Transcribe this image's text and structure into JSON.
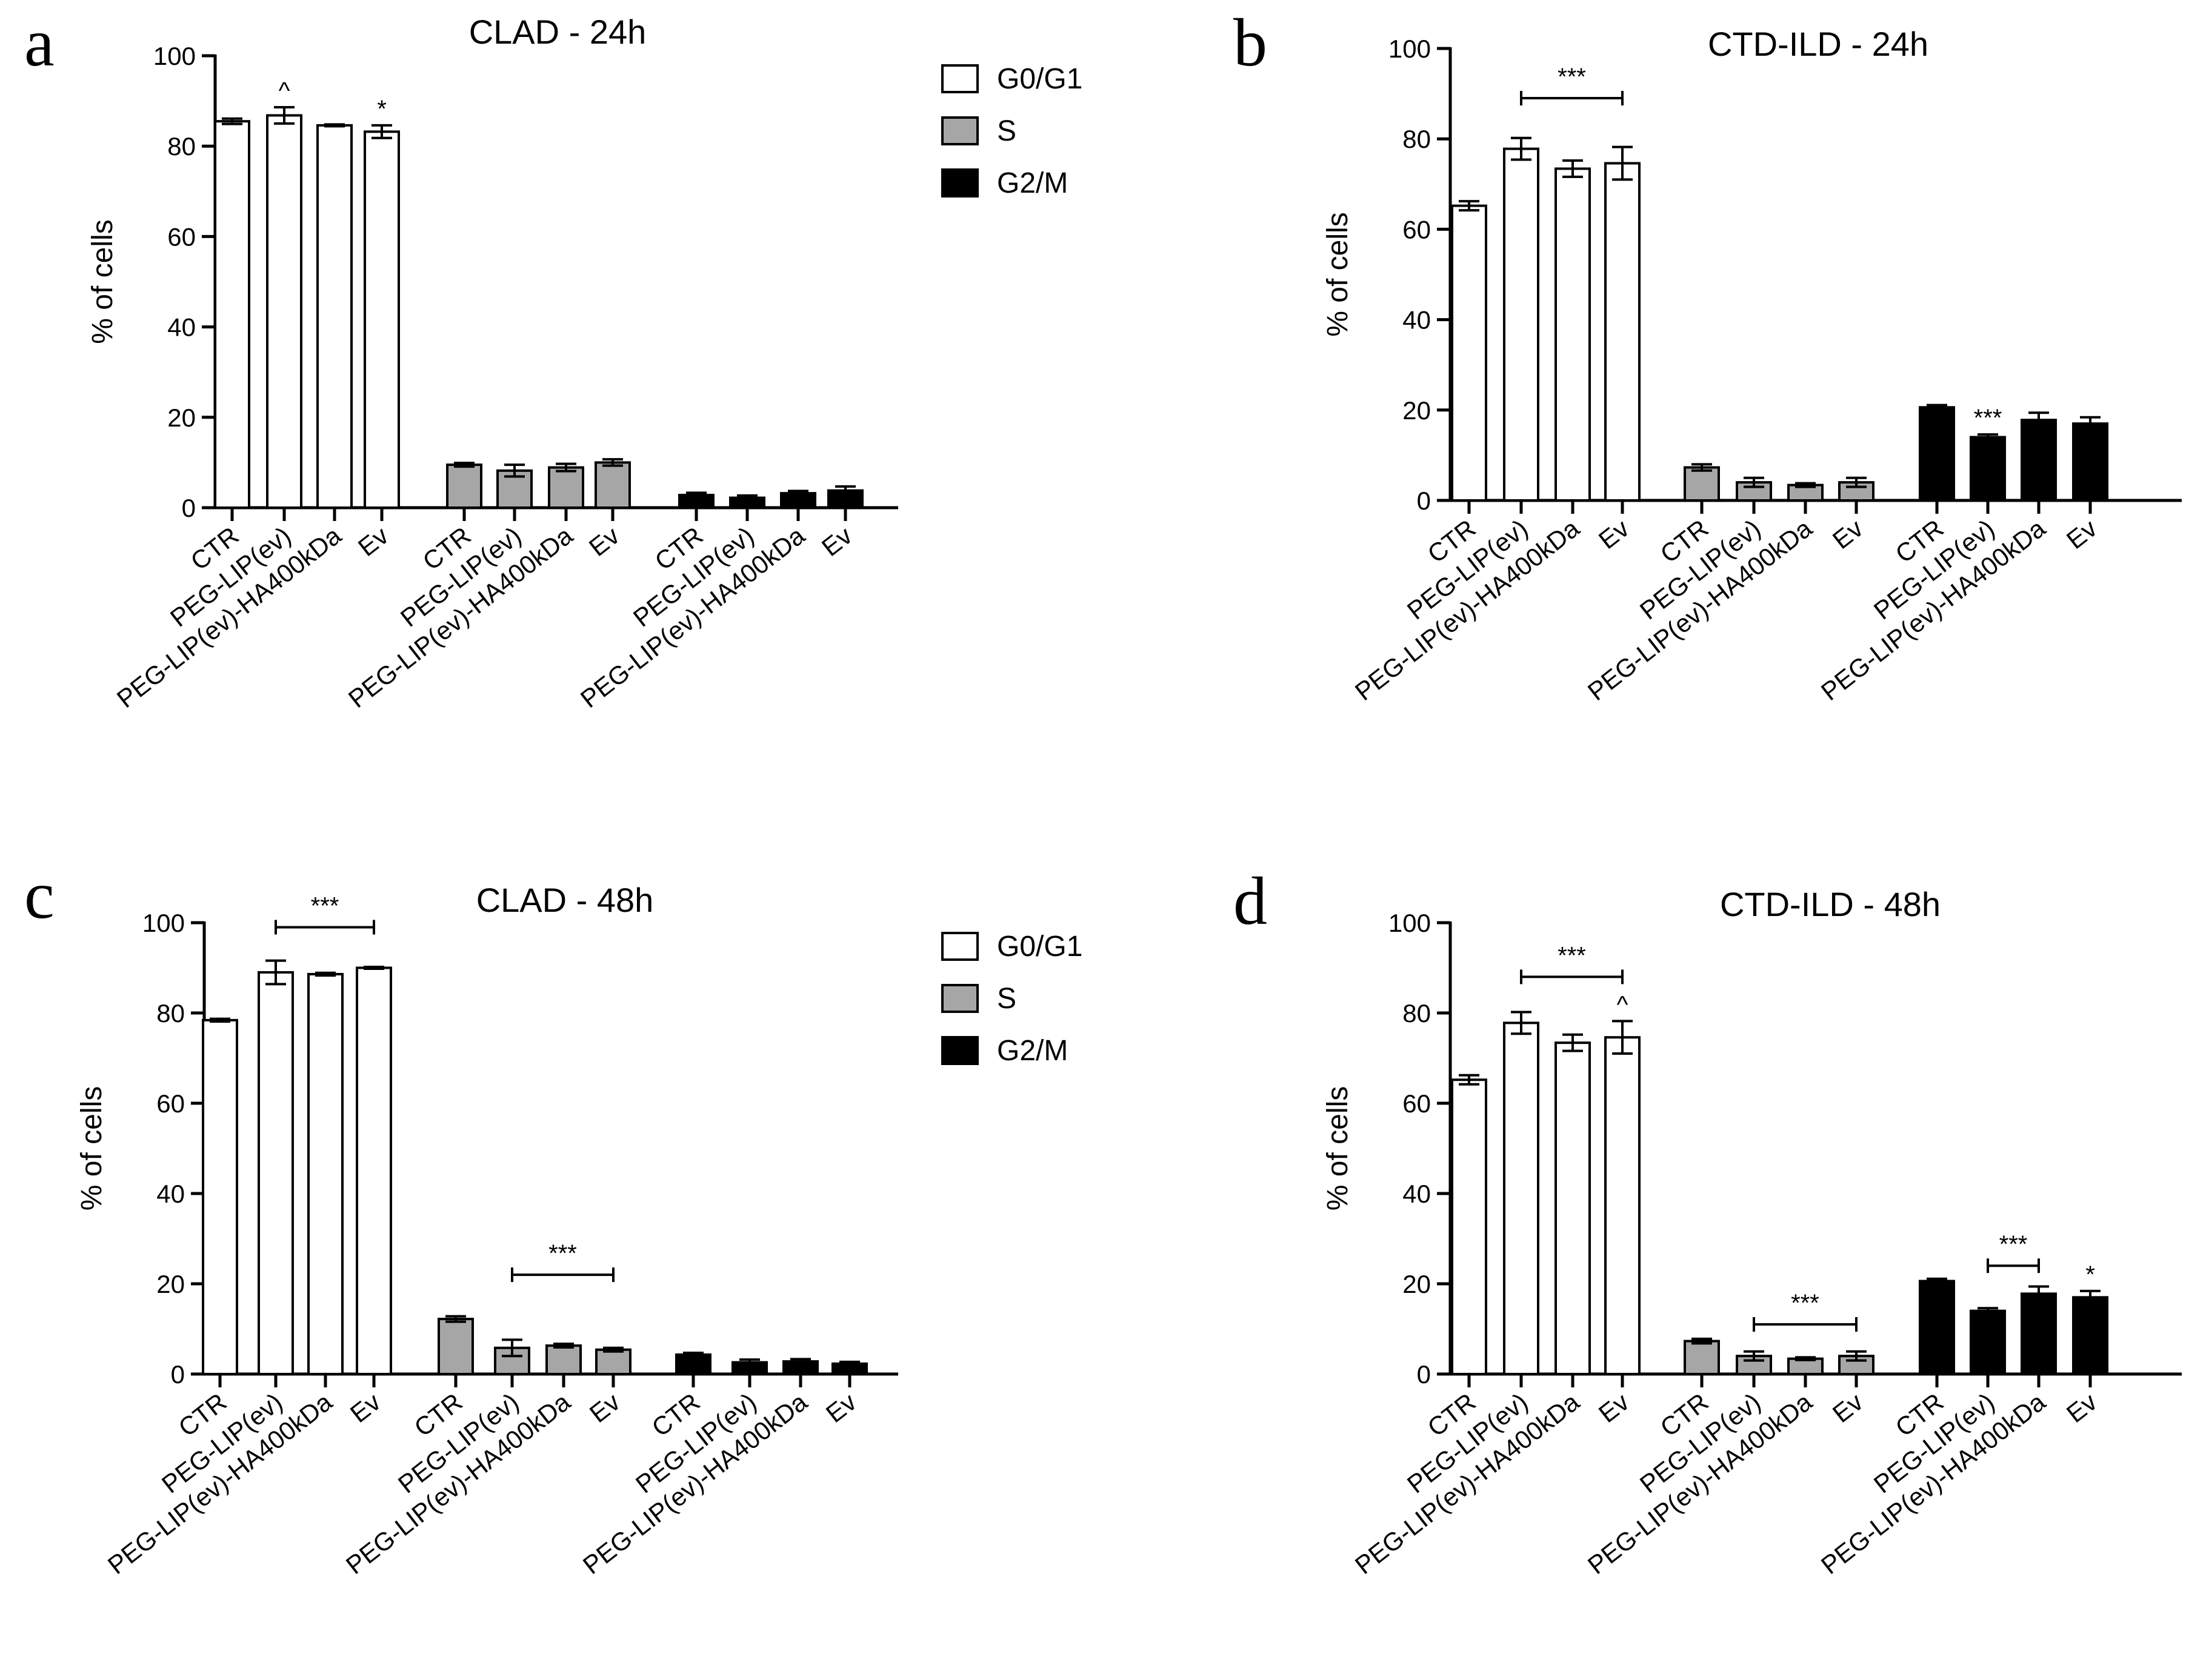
{
  "series_names": [
    "G0/G1",
    "S",
    "G2/M"
  ],
  "series_fills": [
    "#ffffff",
    "#a6a6a6",
    "#000000"
  ],
  "group_labels": [
    "CTR",
    "PEG-LIP(ev)",
    "PEG-LIP(ev)-HA400kDa",
    "Ev"
  ],
  "chart_data": [
    {
      "panel": "a",
      "type": "bar",
      "title": "CLAD - 24h",
      "ylabel": "% of cells",
      "ylim": [
        0,
        100
      ],
      "yticks": [
        0,
        20,
        40,
        60,
        80,
        100
      ],
      "categories": [
        "CTR",
        "PEG-LIP(ev)",
        "PEG-LIP(ev)-HA400kDa",
        "Ev"
      ],
      "legend": true,
      "series": [
        {
          "name": "G0/G1",
          "values": [
            85.5,
            86.8,
            84.6,
            83.2
          ],
          "errors": [
            0.6,
            1.8,
            0.2,
            1.4
          ]
        },
        {
          "name": "S",
          "values": [
            9.5,
            8.2,
            8.9,
            10.0
          ],
          "errors": [
            0.4,
            1.3,
            0.8,
            0.7
          ]
        },
        {
          "name": "G2/M",
          "values": [
            2.8,
            2.2,
            3.2,
            3.8
          ],
          "errors": [
            0.5,
            0.5,
            0.5,
            0.9
          ]
        }
      ],
      "annotations": [
        {
          "series": 0,
          "bar": 1,
          "text": "^"
        },
        {
          "series": 0,
          "bar": 3,
          "text": "*"
        }
      ],
      "brackets": []
    },
    {
      "panel": "b",
      "type": "bar",
      "title": "CTD-ILD - 24h",
      "ylabel": "% of cells",
      "ylim": [
        0,
        100
      ],
      "yticks": [
        0,
        20,
        40,
        60,
        80,
        100
      ],
      "categories": [
        "CTR",
        "PEG-LIP(ev)",
        "PEG-LIP(ev)-HA400kDa",
        "Ev"
      ],
      "legend": false,
      "series": [
        {
          "name": "G0/G1",
          "values": [
            65.2,
            77.8,
            73.4,
            74.6
          ],
          "errors": [
            1.0,
            2.4,
            1.8,
            3.6
          ]
        },
        {
          "name": "S",
          "values": [
            7.3,
            4.0,
            3.4,
            4.0
          ],
          "errors": [
            0.7,
            1.0,
            0.4,
            1.0
          ]
        },
        {
          "name": "G2/M",
          "values": [
            20.6,
            14.0,
            17.8,
            17.0
          ],
          "errors": [
            0.5,
            0.6,
            1.6,
            1.4
          ]
        }
      ],
      "annotations": [
        {
          "series": 2,
          "bar": 1,
          "text": "***"
        }
      ],
      "brackets": [
        {
          "series": 0,
          "from": 1,
          "to": 3,
          "value": 89,
          "text": "***"
        }
      ]
    },
    {
      "panel": "c",
      "type": "bar",
      "title": "CLAD - 48h",
      "ylabel": "% of cells",
      "ylim": [
        0,
        100
      ],
      "yticks": [
        0,
        20,
        40,
        60,
        80,
        100
      ],
      "categories": [
        "CTR",
        "PEG-LIP(ev)",
        "PEG-LIP(ev)-HA400kDa",
        "Ev"
      ],
      "legend": true,
      "series": [
        {
          "name": "G0/G1",
          "values": [
            78.4,
            89.0,
            88.6,
            90.0
          ],
          "errors": [
            0.3,
            2.6,
            0.3,
            0.2
          ]
        },
        {
          "name": "S",
          "values": [
            12.2,
            5.8,
            6.3,
            5.4
          ],
          "errors": [
            0.6,
            1.8,
            0.4,
            0.4
          ]
        },
        {
          "name": "G2/M",
          "values": [
            4.3,
            2.6,
            2.8,
            2.3
          ],
          "errors": [
            0.4,
            0.6,
            0.5,
            0.4
          ]
        }
      ],
      "annotations": [],
      "brackets": [
        {
          "series": 0,
          "from": 1,
          "to": 3,
          "value": 99,
          "text": "***"
        },
        {
          "series": 1,
          "from": 1,
          "to": 3,
          "value": 22,
          "text": "***"
        }
      ]
    },
    {
      "panel": "d",
      "type": "bar",
      "title": "CTD-ILD - 48h",
      "ylabel": "% of cells",
      "ylim": [
        0,
        100
      ],
      "yticks": [
        0,
        20,
        40,
        60,
        80,
        100
      ],
      "categories": [
        "CTR",
        "PEG-LIP(ev)",
        "PEG-LIP(ev)-HA400kDa",
        "Ev"
      ],
      "legend": false,
      "series": [
        {
          "name": "G0/G1",
          "values": [
            65.2,
            77.8,
            73.4,
            74.6
          ],
          "errors": [
            1.0,
            2.4,
            1.8,
            3.6
          ]
        },
        {
          "name": "S",
          "values": [
            7.3,
            4.0,
            3.4,
            4.0
          ],
          "errors": [
            0.5,
            1.0,
            0.3,
            1.0
          ]
        },
        {
          "name": "G2/M",
          "values": [
            20.6,
            14.0,
            17.8,
            17.0
          ],
          "errors": [
            0.5,
            0.6,
            1.6,
            1.4
          ]
        }
      ],
      "annotations": [
        {
          "series": 0,
          "bar": 3,
          "text": "^"
        },
        {
          "series": 2,
          "bar": 3,
          "text": "*"
        }
      ],
      "brackets": [
        {
          "series": 0,
          "from": 1,
          "to": 3,
          "value": 88,
          "text": "***"
        },
        {
          "series": 1,
          "from": 1,
          "to": 3,
          "value": 11,
          "text": "***"
        },
        {
          "series": 2,
          "from": 1,
          "to": 2,
          "value": 24,
          "text": "***"
        }
      ]
    }
  ]
}
